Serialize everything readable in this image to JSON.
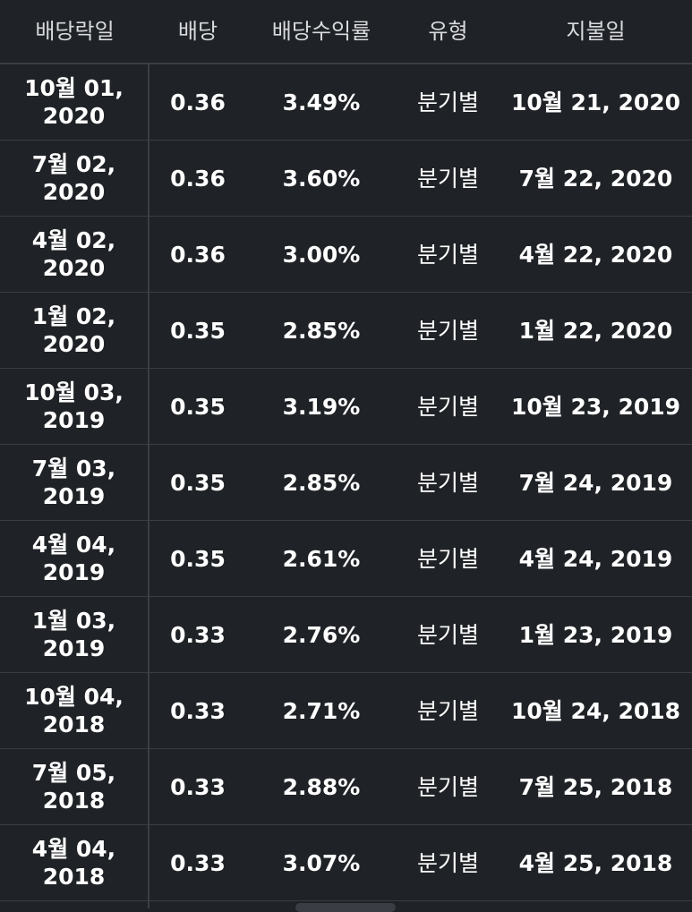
{
  "table": {
    "headers": [
      "배당락일",
      "배당",
      "배당수익률",
      "유형",
      "지불일"
    ],
    "rows": [
      {
        "ex_date": "10월 01, 2020",
        "dividend": "0.36",
        "yield": "3.49%",
        "type": "분기별",
        "pay_date": "10월 21, 2020"
      },
      {
        "ex_date": "7월 02, 2020",
        "dividend": "0.36",
        "yield": "3.60%",
        "type": "분기별",
        "pay_date": "7월 22, 2020"
      },
      {
        "ex_date": "4월 02, 2020",
        "dividend": "0.36",
        "yield": "3.00%",
        "type": "분기별",
        "pay_date": "4월 22, 2020"
      },
      {
        "ex_date": "1월 02, 2020",
        "dividend": "0.35",
        "yield": "2.85%",
        "type": "분기별",
        "pay_date": "1월 22, 2020"
      },
      {
        "ex_date": "10월 03, 2019",
        "dividend": "0.35",
        "yield": "3.19%",
        "type": "분기별",
        "pay_date": "10월 23, 2019"
      },
      {
        "ex_date": "7월 03, 2019",
        "dividend": "0.35",
        "yield": "2.85%",
        "type": "분기별",
        "pay_date": "7월 24, 2019"
      },
      {
        "ex_date": "4월 04, 2019",
        "dividend": "0.35",
        "yield": "2.61%",
        "type": "분기별",
        "pay_date": "4월 24, 2019"
      },
      {
        "ex_date": "1월 03, 2019",
        "dividend": "0.33",
        "yield": "2.76%",
        "type": "분기별",
        "pay_date": "1월 23, 2019"
      },
      {
        "ex_date": "10월 04, 2018",
        "dividend": "0.33",
        "yield": "2.71%",
        "type": "분기별",
        "pay_date": "10월 24, 2018"
      },
      {
        "ex_date": "7월 05, 2018",
        "dividend": "0.33",
        "yield": "2.88%",
        "type": "분기별",
        "pay_date": "7월 25, 2018"
      },
      {
        "ex_date": "4월 04, 2018",
        "dividend": "0.33",
        "yield": "3.07%",
        "type": "분기별",
        "pay_date": "4월 25, 2018"
      }
    ]
  },
  "colors": {
    "background": "#1f2226",
    "divider": "#3a3e44",
    "text": "#ffffff",
    "header_text": "#d9dadc"
  }
}
